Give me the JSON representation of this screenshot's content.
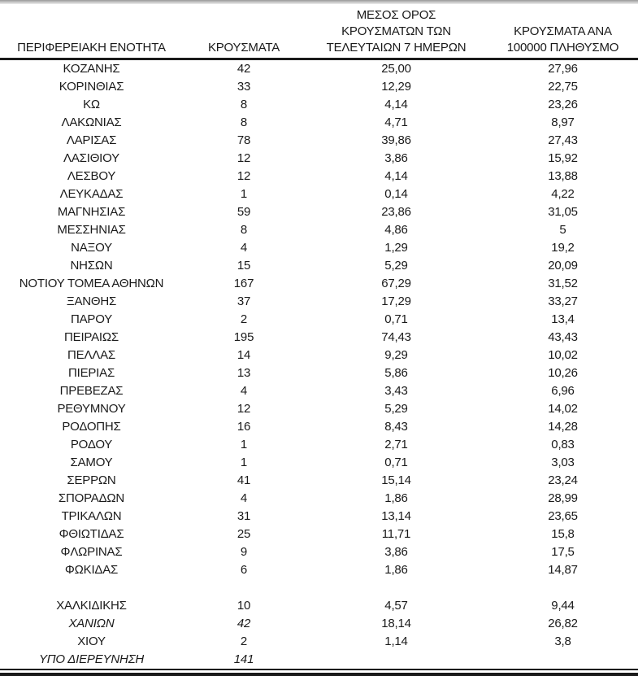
{
  "colors": {
    "text": "#1a1a1a",
    "background": "#ffffff",
    "rule": "#1a1a1a"
  },
  "table": {
    "columns": [
      {
        "label": "ΠΕΡΙΦΕΡΕΙΑΚΗ ΕΝΟΤΗΤΑ"
      },
      {
        "label": "ΚΡΟΥΣΜΑΤΑ"
      },
      {
        "label": "ΜΕΣΟΣ ΟΡΟΣ\nΚΡΟΥΣΜΑΤΩΝ ΤΩΝ\nΤΕΛΕΥΤΑΙΩΝ 7 ΗΜΕΡΩΝ"
      },
      {
        "label": "ΚΡΟΥΣΜΑΤΑ ΑΝΑ\n100000 ΠΛΗΘΥΣΜΟ"
      }
    ],
    "rows": [
      {
        "region": "ΚΟΖΑΝΗΣ",
        "cases": "42",
        "avg_7day": "25,00",
        "per_100k": "27,96",
        "italic": false,
        "blank": false
      },
      {
        "region": "ΚΟΡΙΝΘΙΑΣ",
        "cases": "33",
        "avg_7day": "12,29",
        "per_100k": "22,75",
        "italic": false,
        "blank": false
      },
      {
        "region": "ΚΩ",
        "cases": "8",
        "avg_7day": "4,14",
        "per_100k": "23,26",
        "italic": false,
        "blank": false
      },
      {
        "region": "ΛΑΚΩΝΙΑΣ",
        "cases": "8",
        "avg_7day": "4,71",
        "per_100k": "8,97",
        "italic": false,
        "blank": false
      },
      {
        "region": "ΛΑΡΙΣΑΣ",
        "cases": "78",
        "avg_7day": "39,86",
        "per_100k": "27,43",
        "italic": false,
        "blank": false
      },
      {
        "region": "ΛΑΣΙΘΙΟΥ",
        "cases": "12",
        "avg_7day": "3,86",
        "per_100k": "15,92",
        "italic": false,
        "blank": false
      },
      {
        "region": "ΛΕΣΒΟΥ",
        "cases": "12",
        "avg_7day": "4,14",
        "per_100k": "13,88",
        "italic": false,
        "blank": false
      },
      {
        "region": "ΛΕΥΚΑΔΑΣ",
        "cases": "1",
        "avg_7day": "0,14",
        "per_100k": "4,22",
        "italic": false,
        "blank": false
      },
      {
        "region": "ΜΑΓΝΗΣΙΑΣ",
        "cases": "59",
        "avg_7day": "23,86",
        "per_100k": "31,05",
        "italic": false,
        "blank": false
      },
      {
        "region": "ΜΕΣΣΗΝΙΑΣ",
        "cases": "8",
        "avg_7day": "4,86",
        "per_100k": "5",
        "italic": false,
        "blank": false
      },
      {
        "region": "ΝΑΞΟΥ",
        "cases": "4",
        "avg_7day": "1,29",
        "per_100k": "19,2",
        "italic": false,
        "blank": false
      },
      {
        "region": "ΝΗΣΩΝ",
        "cases": "15",
        "avg_7day": "5,29",
        "per_100k": "20,09",
        "italic": false,
        "blank": false
      },
      {
        "region": "ΝΟΤΙΟΥ ΤΟΜΕΑ ΑΘΗΝΩΝ",
        "cases": "167",
        "avg_7day": "67,29",
        "per_100k": "31,52",
        "italic": false,
        "blank": false
      },
      {
        "region": "ΞΑΝΘΗΣ",
        "cases": "37",
        "avg_7day": "17,29",
        "per_100k": "33,27",
        "italic": false,
        "blank": false
      },
      {
        "region": "ΠΑΡΟΥ",
        "cases": "2",
        "avg_7day": "0,71",
        "per_100k": "13,4",
        "italic": false,
        "blank": false
      },
      {
        "region": "ΠΕΙΡΑΙΩΣ",
        "cases": "195",
        "avg_7day": "74,43",
        "per_100k": "43,43",
        "italic": false,
        "blank": false
      },
      {
        "region": "ΠΕΛΛΑΣ",
        "cases": "14",
        "avg_7day": "9,29",
        "per_100k": "10,02",
        "italic": false,
        "blank": false
      },
      {
        "region": "ΠΙΕΡΙΑΣ",
        "cases": "13",
        "avg_7day": "5,86",
        "per_100k": "10,26",
        "italic": false,
        "blank": false
      },
      {
        "region": "ΠΡΕΒΕΖΑΣ",
        "cases": "4",
        "avg_7day": "3,43",
        "per_100k": "6,96",
        "italic": false,
        "blank": false
      },
      {
        "region": "ΡΕΘΥΜΝΟΥ",
        "cases": "12",
        "avg_7day": "5,29",
        "per_100k": "14,02",
        "italic": false,
        "blank": false
      },
      {
        "region": "ΡΟΔΟΠΗΣ",
        "cases": "16",
        "avg_7day": "8,43",
        "per_100k": "14,28",
        "italic": false,
        "blank": false
      },
      {
        "region": "ΡΟΔΟΥ",
        "cases": "1",
        "avg_7day": "2,71",
        "per_100k": "0,83",
        "italic": false,
        "blank": false
      },
      {
        "region": "ΣΑΜΟΥ",
        "cases": "1",
        "avg_7day": "0,71",
        "per_100k": "3,03",
        "italic": false,
        "blank": false
      },
      {
        "region": "ΣΕΡΡΩΝ",
        "cases": "41",
        "avg_7day": "15,14",
        "per_100k": "23,24",
        "italic": false,
        "blank": false
      },
      {
        "region": "ΣΠΟΡΑΔΩΝ",
        "cases": "4",
        "avg_7day": "1,86",
        "per_100k": "28,99",
        "italic": false,
        "blank": false
      },
      {
        "region": "ΤΡΙΚΑΛΩΝ",
        "cases": "31",
        "avg_7day": "13,14",
        "per_100k": "23,65",
        "italic": false,
        "blank": false
      },
      {
        "region": "ΦΘΙΩΤΙΔΑΣ",
        "cases": "25",
        "avg_7day": "11,71",
        "per_100k": "15,8",
        "italic": false,
        "blank": false
      },
      {
        "region": "ΦΛΩΡΙΝΑΣ",
        "cases": "9",
        "avg_7day": "3,86",
        "per_100k": "17,5",
        "italic": false,
        "blank": false
      },
      {
        "region": "ΦΩΚΙΔΑΣ",
        "cases": "6",
        "avg_7day": "1,86",
        "per_100k": "14,87",
        "italic": false,
        "blank": false
      },
      {
        "region": "",
        "cases": "",
        "avg_7day": "",
        "per_100k": "",
        "italic": false,
        "blank": true
      },
      {
        "region": "ΧΑΛΚΙΔΙΚΗΣ",
        "cases": "10",
        "avg_7day": "4,57",
        "per_100k": "9,44",
        "italic": false,
        "blank": false
      },
      {
        "region": "ΧΑΝΙΩΝ",
        "cases": "42",
        "avg_7day": "18,14",
        "per_100k": "26,82",
        "italic": true,
        "blank": false
      },
      {
        "region": "ΧΙΟΥ",
        "cases": "2",
        "avg_7day": "1,14",
        "per_100k": "3,8",
        "italic": false,
        "blank": false
      },
      {
        "region": "ΥΠΟ ΔΙΕΡΕΥΝΗΣΗ",
        "cases": "141",
        "avg_7day": "",
        "per_100k": "",
        "italic": true,
        "blank": false
      }
    ]
  }
}
